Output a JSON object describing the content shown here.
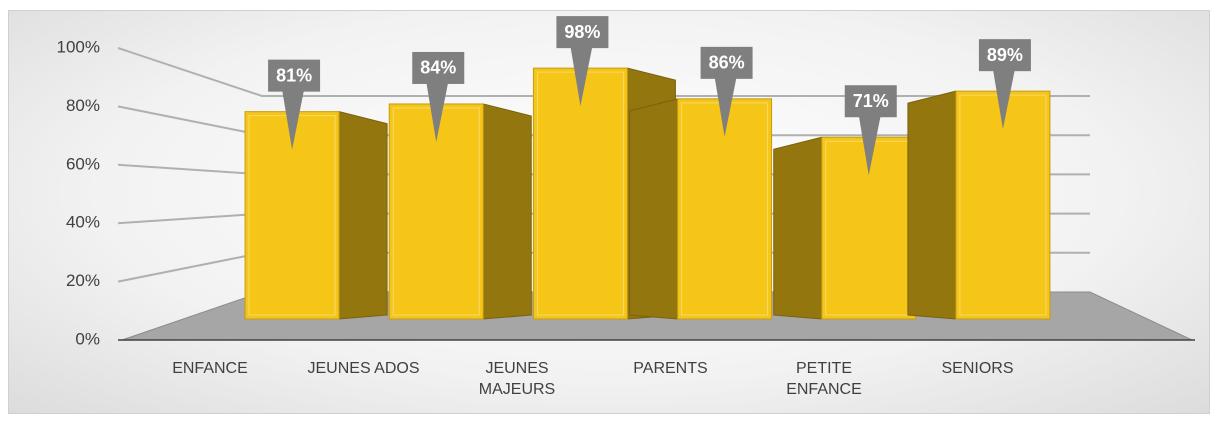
{
  "chart_data": {
    "type": "bar3d",
    "categories": [
      "ENFANCE",
      "JEUNES ADOS",
      "JEUNES MAJEURS",
      "PARENTS",
      "PETITE ENFANCE",
      "SENIORS"
    ],
    "values": [
      81,
      84,
      98,
      86,
      71,
      89
    ],
    "value_labels": [
      "81%",
      "84%",
      "98%",
      "86%",
      "71%",
      "89%"
    ],
    "color": "#f5c518",
    "ylim": [
      0,
      100
    ],
    "yticks": [
      {
        "value": 0,
        "label": "0%"
      },
      {
        "value": 20,
        "label": "20%"
      },
      {
        "value": 40,
        "label": "40%"
      },
      {
        "value": 60,
        "label": "60%"
      },
      {
        "value": 80,
        "label": "80%"
      },
      {
        "value": 100,
        "label": "100%"
      }
    ],
    "grid": true
  }
}
